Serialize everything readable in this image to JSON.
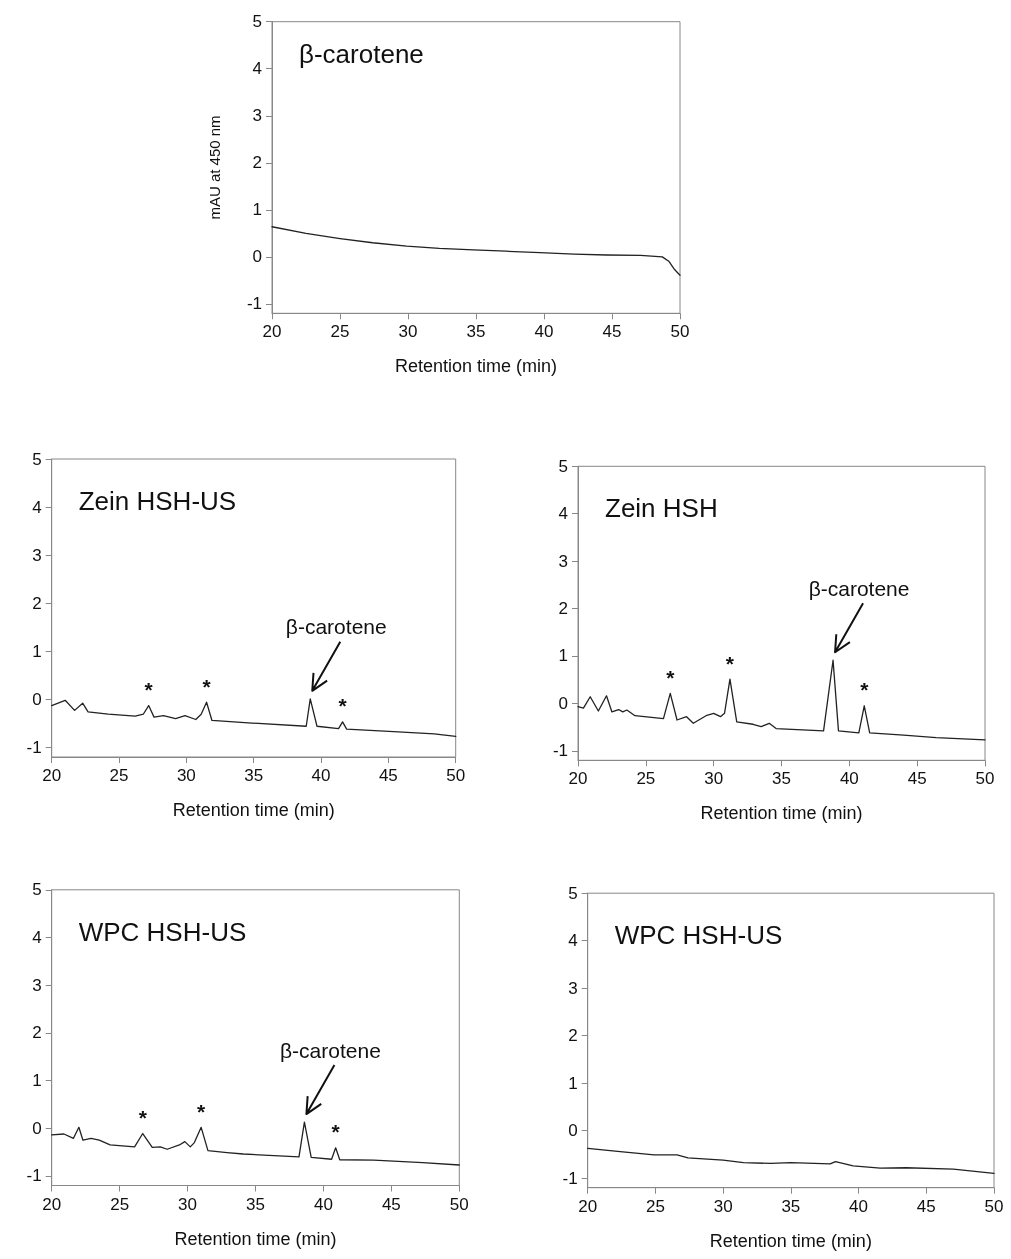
{
  "chart_data": [
    {
      "type": "line",
      "title": "β-carotene",
      "xlabel": "Retention time (min)",
      "ylabel": "mAU at 450 nm",
      "color": "#222222",
      "marker": "none",
      "xlim": [
        20,
        50
      ],
      "xticks": [
        20,
        25,
        30,
        35,
        40,
        45,
        50
      ],
      "ylim": [
        -1.2,
        5
      ],
      "yticks": [
        -1,
        0,
        1,
        2,
        3,
        4,
        5
      ],
      "x": [
        20,
        22.5,
        25,
        27.4,
        29.9,
        32.3,
        34.8,
        37.2,
        39.7,
        42.2,
        44.6,
        47.1,
        48.7,
        49.2,
        49.6,
        50
      ],
      "values": [
        0.64,
        0.5,
        0.39,
        0.3,
        0.23,
        0.18,
        0.15,
        0.12,
        0.09,
        0.06,
        0.04,
        0.03,
        0,
        -0.1,
        -0.27,
        -0.39
      ]
    },
    {
      "type": "line",
      "title": "Zein HSH-US",
      "xlabel": "Retention time (min)",
      "color": "#222222",
      "marker": "none",
      "xlim": [
        20,
        50
      ],
      "xticks": [
        20,
        25,
        30,
        35,
        40,
        45,
        50
      ],
      "ylim": [
        -1.2,
        5
      ],
      "yticks": [
        -1,
        0,
        1,
        2,
        3,
        4,
        5
      ],
      "x": [
        20,
        21,
        21.7,
        22.3,
        22.7,
        24.2,
        26.2,
        26.8,
        27.2,
        27.6,
        28.3,
        29.2,
        29.9,
        30.7,
        31.1,
        31.5,
        31.9,
        34.6,
        38.9,
        39.2,
        39.7,
        41.3,
        41.6,
        41.9,
        45.4,
        48.4,
        50
      ],
      "values": [
        -0.13,
        -0.02,
        -0.23,
        -0.08,
        -0.26,
        -0.31,
        -0.35,
        -0.31,
        -0.13,
        -0.37,
        -0.34,
        -0.4,
        -0.34,
        -0.42,
        -0.31,
        -0.06,
        -0.44,
        -0.49,
        -0.56,
        0.01,
        -0.56,
        -0.61,
        -0.47,
        -0.62,
        -0.67,
        -0.72,
        -0.77
      ],
      "annotations": [
        {
          "text": "*",
          "x": 27.2,
          "y": -0.13
        },
        {
          "text": "*",
          "x": 31.5,
          "y": -0.06
        },
        {
          "text": "β-carotene",
          "x": 39.2,
          "y": 0.01
        },
        {
          "text": "*",
          "x": 41.6,
          "y": -0.47
        }
      ]
    },
    {
      "type": "line",
      "title": "Zein HSH",
      "xlabel": "Retention time (min)",
      "color": "#222222",
      "marker": "none",
      "xlim": [
        20,
        50
      ],
      "xticks": [
        20,
        25,
        30,
        35,
        40,
        45,
        50
      ],
      "ylim": [
        -1.2,
        5
      ],
      "yticks": [
        -1,
        0,
        1,
        2,
        3,
        4,
        5
      ],
      "x": [
        20,
        20.4,
        20.9,
        21.5,
        22.1,
        22.5,
        23,
        23.3,
        23.6,
        24.2,
        26.3,
        26.8,
        27.3,
        28,
        28.5,
        29.5,
        30,
        30.5,
        30.8,
        31.2,
        31.7,
        32.9,
        33.5,
        34.1,
        34.6,
        38.1,
        38.8,
        39.2,
        40.7,
        41.1,
        41.5,
        44,
        46.4,
        50
      ],
      "values": [
        -0.07,
        -0.1,
        0.14,
        -0.16,
        0.16,
        -0.18,
        -0.13,
        -0.18,
        -0.14,
        -0.26,
        -0.32,
        0.21,
        -0.35,
        -0.28,
        -0.42,
        -0.25,
        -0.21,
        -0.28,
        -0.21,
        0.51,
        -0.39,
        -0.44,
        -0.49,
        -0.42,
        -0.53,
        -0.58,
        0.91,
        -0.58,
        -0.62,
        -0.05,
        -0.62,
        -0.67,
        -0.72,
        -0.77
      ],
      "annotations": [
        {
          "text": "*",
          "x": 26.8,
          "y": 0.21
        },
        {
          "text": "*",
          "x": 31.2,
          "y": 0.51
        },
        {
          "text": "β-carotene",
          "x": 38.8,
          "y": 0.91
        },
        {
          "text": "*",
          "x": 41.1,
          "y": -0.05
        }
      ]
    },
    {
      "type": "line",
      "title": "WPC HSH-US",
      "xlabel": "Retention time (min)",
      "color": "#222222",
      "marker": "none",
      "xlim": [
        20,
        50
      ],
      "xticks": [
        20,
        25,
        30,
        35,
        40,
        45,
        50
      ],
      "ylim": [
        -1.2,
        5
      ],
      "yticks": [
        -1,
        0,
        1,
        2,
        3,
        4,
        5
      ],
      "x": [
        20,
        20.9,
        21.6,
        22,
        22.3,
        22.9,
        23.5,
        24.3,
        26.1,
        26.7,
        27.4,
        28,
        28.5,
        29.4,
        29.8,
        30.2,
        30.5,
        31,
        31.5,
        32.9,
        34.1,
        38.2,
        38.6,
        39.1,
        40.6,
        40.9,
        41.2,
        43.7,
        47.3,
        50
      ],
      "values": [
        -0.14,
        -0.12,
        -0.21,
        0.02,
        -0.25,
        -0.21,
        -0.25,
        -0.35,
        -0.39,
        -0.11,
        -0.4,
        -0.39,
        -0.44,
        -0.35,
        -0.28,
        -0.39,
        -0.3,
        0.02,
        -0.47,
        -0.51,
        -0.54,
        -0.6,
        0.13,
        -0.61,
        -0.65,
        -0.41,
        -0.66,
        -0.67,
        -0.72,
        -0.77
      ],
      "annotations": [
        {
          "text": "*",
          "x": 26.7,
          "y": -0.11
        },
        {
          "text": "*",
          "x": 31,
          "y": 0.02
        },
        {
          "text": "β-carotene",
          "x": 38.6,
          "y": 0.13
        },
        {
          "text": "*",
          "x": 40.9,
          "y": -0.41
        }
      ]
    },
    {
      "type": "line",
      "title": "WPC HSH-US",
      "xlabel": "Retention time (min)",
      "color": "#222222",
      "marker": "none",
      "xlim": [
        20,
        50
      ],
      "xticks": [
        20,
        25,
        30,
        35,
        40,
        45,
        50
      ],
      "ylim": [
        -1.2,
        5
      ],
      "yticks": [
        -1,
        0,
        1,
        2,
        3,
        4,
        5
      ],
      "x": [
        20,
        22.4,
        24.9,
        26.6,
        27.4,
        30,
        31.5,
        33.5,
        35,
        37.9,
        38.3,
        39.6,
        41.6,
        43.5,
        47,
        50
      ],
      "values": [
        -0.37,
        -0.44,
        -0.51,
        -0.51,
        -0.57,
        -0.62,
        -0.67,
        -0.69,
        -0.67,
        -0.7,
        -0.65,
        -0.74,
        -0.79,
        -0.78,
        -0.81,
        -0.9
      ]
    }
  ]
}
